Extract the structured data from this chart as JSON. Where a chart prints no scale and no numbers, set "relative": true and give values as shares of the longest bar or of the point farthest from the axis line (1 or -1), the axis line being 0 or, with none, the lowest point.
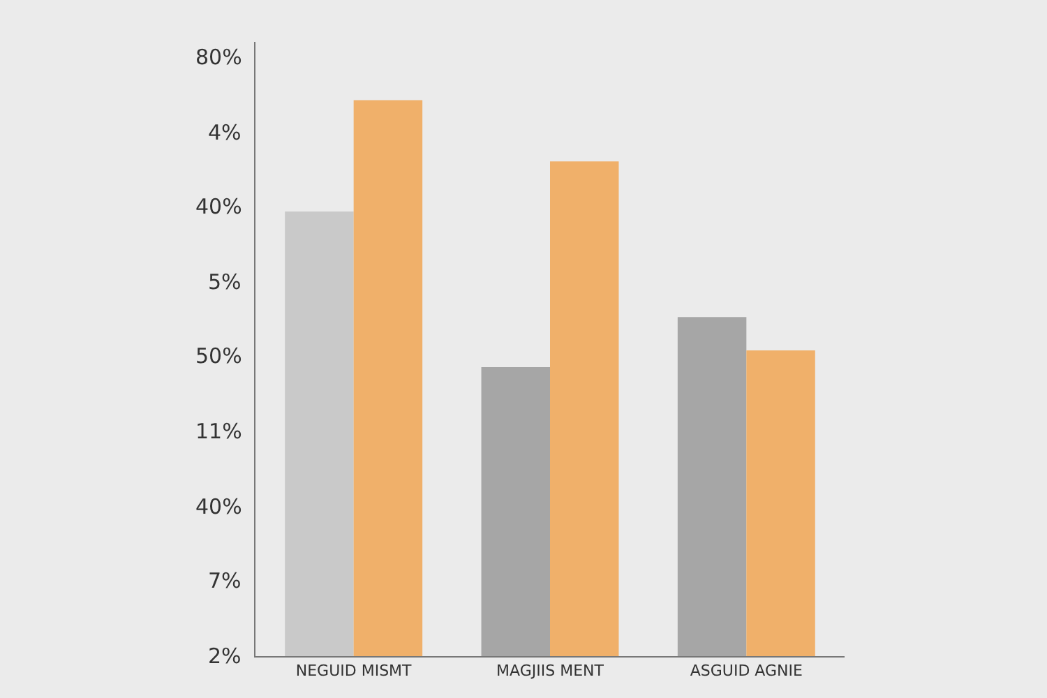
{
  "chart_data": {
    "type": "bar",
    "relative": true,
    "categories": [
      "NEGUID MISMT",
      "MAGJIIS MENT",
      "ASGUID AGNIE"
    ],
    "series": [
      {
        "colors": [
          "#c9c9c9",
          "#a6a6a6",
          "#a6a6a6"
        ],
        "values": [
          0.8,
          0.52,
          0.61
        ]
      },
      {
        "colors": [
          "#f0b06a",
          "#f0b06a",
          "#f0b06a"
        ],
        "values": [
          1,
          0.89,
          0.55
        ]
      }
    ],
    "annotations": [
      "2%",
      "7%",
      "40%",
      "11%",
      "50%",
      "5%",
      "40%",
      "4%",
      "80%"
    ],
    "grid": false
  }
}
